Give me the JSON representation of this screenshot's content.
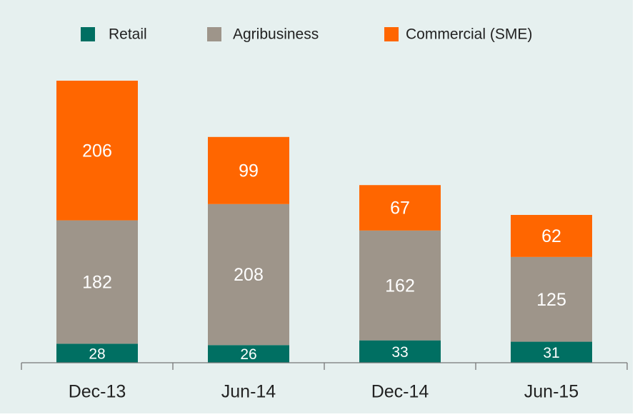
{
  "chart_data": {
    "type": "stacked_bar",
    "categories": [
      "Dec-13",
      "Jun-14",
      "Dec-14",
      "Jun-15"
    ],
    "series": [
      {
        "name": "Retail",
        "color": "#006f62",
        "values": [
          28,
          26,
          33,
          31
        ]
      },
      {
        "name": "Agribusiness",
        "color": "#9e958a",
        "values": [
          182,
          208,
          162,
          125
        ]
      },
      {
        "name": "Commercial (SME)",
        "color": "#ff6600",
        "values": [
          206,
          99,
          67,
          62
        ]
      }
    ],
    "legend": "top"
  }
}
